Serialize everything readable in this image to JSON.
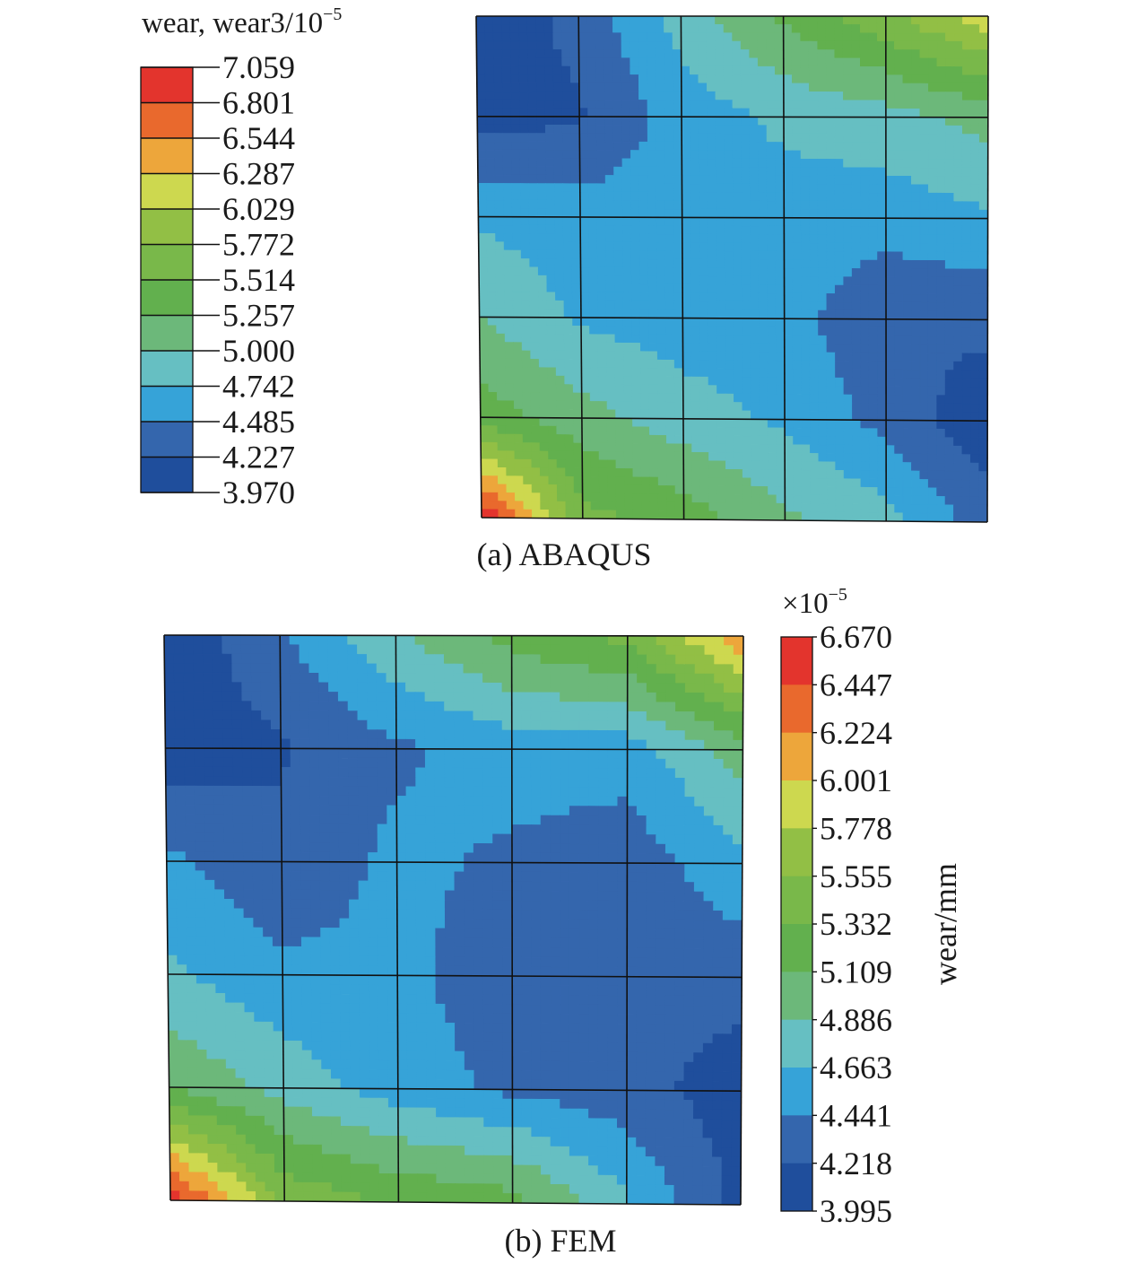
{
  "chart_data": [
    {
      "type": "heatmap",
      "caption": "(a) ABAQUS",
      "legend": {
        "title": "wear, wear3/10",
        "title_exp": "−5",
        "placement": "top-left",
        "ticks": [
          "7.059",
          "6.801",
          "6.544",
          "6.287",
          "6.029",
          "5.772",
          "5.514",
          "5.257",
          "5.000",
          "4.742",
          "4.485",
          "4.227",
          "3.970"
        ],
        "range": [
          3.97,
          7.059
        ]
      },
      "grid": {
        "rows": 5,
        "cols": 5,
        "lines": true
      },
      "node_values": [
        [
          4.05,
          4.3,
          4.85,
          5.3,
          5.7,
          6.2
        ],
        [
          4.1,
          4.2,
          4.6,
          4.8,
          4.9,
          5.1
        ],
        [
          4.7,
          4.6,
          4.62,
          4.62,
          4.6,
          4.7
        ],
        [
          5.0,
          4.7,
          4.62,
          4.6,
          4.25,
          4.3
        ],
        [
          5.4,
          5.1,
          4.85,
          4.7,
          4.4,
          4.05
        ],
        [
          7.05,
          5.6,
          5.4,
          5.05,
          4.85,
          4.35
        ]
      ]
    },
    {
      "type": "heatmap",
      "caption": "(b) FEM",
      "legend": {
        "title": "wear/mm",
        "multiplier": "×10",
        "multiplier_exp": "−5",
        "placement": "right",
        "ticks": [
          "6.670",
          "6.447",
          "6.224",
          "6.001",
          "5.778",
          "5.555",
          "5.332",
          "5.109",
          "4.886",
          "4.663",
          "4.441",
          "4.218",
          "3.995"
        ],
        "range": [
          3.995,
          6.67
        ]
      },
      "grid": {
        "rows": 5,
        "cols": 5,
        "lines": true
      },
      "node_values": [
        [
          4.05,
          4.4,
          4.85,
          5.2,
          5.4,
          6.2
        ],
        [
          4.05,
          4.2,
          4.4,
          4.55,
          4.55,
          5.0
        ],
        [
          4.5,
          4.25,
          4.5,
          4.4,
          4.3,
          4.6
        ],
        [
          4.7,
          4.5,
          4.5,
          4.3,
          4.3,
          4.3
        ],
        [
          5.1,
          4.8,
          4.55,
          4.4,
          4.3,
          4.1
        ],
        [
          6.6,
          5.5,
          5.3,
          5.2,
          4.7,
          4.15
        ]
      ]
    }
  ],
  "palette": [
    "#1f4e9c",
    "#3466ad",
    "#36a3d8",
    "#66bfc2",
    "#6cb87a",
    "#62b04e",
    "#79b84a",
    "#92bf45",
    "#cdd84f",
    "#eda63b",
    "#e9692d",
    "#e3342d"
  ]
}
